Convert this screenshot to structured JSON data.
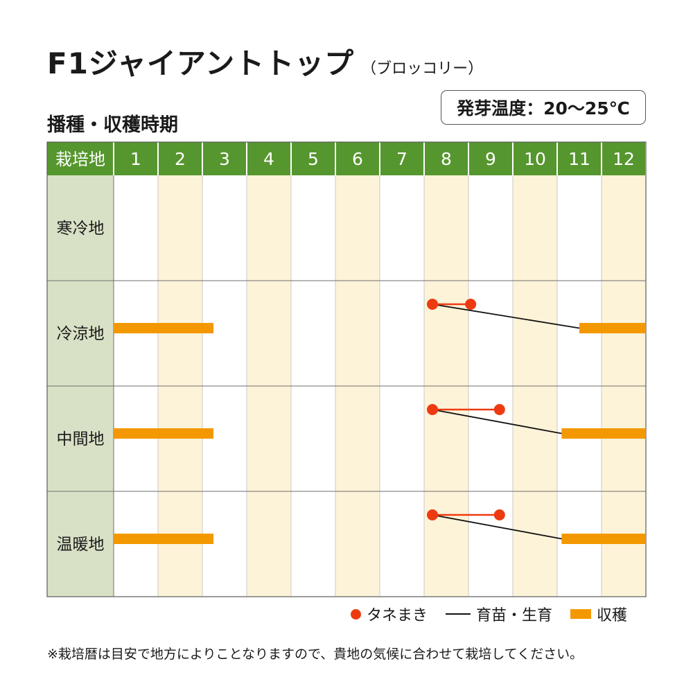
{
  "title": "F1ジャイアントトップ",
  "subtitle": "（ブロッコリー）",
  "section_title": "播種・収穫時期",
  "germination_temp": "発芽温度：20〜25℃",
  "legend": {
    "sowing": "タネまき",
    "nursery": "育苗・生育",
    "harvest": "収穫"
  },
  "note": "※栽培暦は目安で地方によりことなりますので、貴地の気候に合わせて栽培してください。",
  "colors": {
    "header_green": "#56962e",
    "row_label_bg": "#d8e1c5",
    "shade_col": "#fdf3d8",
    "sowing_dot": "#ee3a10",
    "nursery_line_red": "#ee3a10",
    "growth_line": "#111111",
    "harvest_bar": "#f39800"
  },
  "chart_data": {
    "type": "table",
    "header_label": "栽培地",
    "months": [
      "1",
      "2",
      "3",
      "4",
      "5",
      "6",
      "7",
      "8",
      "9",
      "10",
      "11",
      "12"
    ],
    "regions": [
      {
        "name": "寒冷地",
        "sowing": null,
        "nursery_end": null,
        "harvest": []
      },
      {
        "name": "冷涼地",
        "sowing": 8.0,
        "nursery_end": 9.05,
        "harvest": [
          [
            1.0,
            3.25
          ],
          [
            11.5,
            13.0
          ]
        ]
      },
      {
        "name": "中間地",
        "sowing": 8.0,
        "nursery_end": 9.7,
        "harvest": [
          [
            1.0,
            3.25
          ],
          [
            11.1,
            13.0
          ]
        ]
      },
      {
        "name": "温暖地",
        "sowing": 8.0,
        "nursery_end": 9.7,
        "harvest": [
          [
            1.0,
            3.25
          ],
          [
            11.1,
            13.0
          ]
        ]
      }
    ]
  }
}
